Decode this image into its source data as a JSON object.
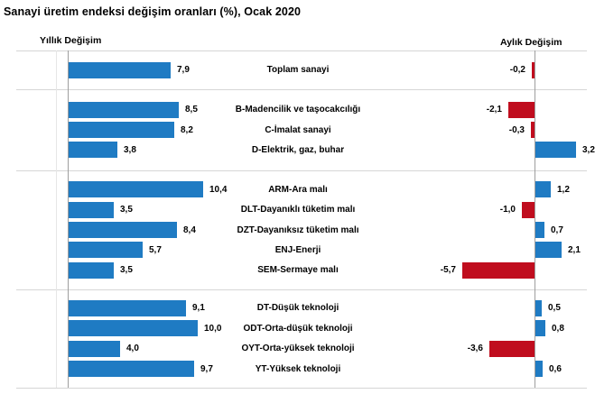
{
  "chart_data": {
    "type": "bar",
    "orientation": "horizontal",
    "title": "Sanayi üretim endeksi değişim oranları (%), Ocak 2020",
    "panels": [
      {
        "name": "Yıllık Değişim",
        "side": "left"
      },
      {
        "name": "Aylık Değişim",
        "side": "right"
      }
    ],
    "colors": {
      "positive": "#1f7bc3",
      "negative": "#c00d1e"
    },
    "value_format": "comma-decimal, 1 decimal place",
    "layout_hints": {
      "grid": "horizontal group separators only",
      "axis_ticks": "none",
      "value_labels": "at bar ends"
    },
    "groups": [
      {
        "rows": [
          {
            "label": "Toplam sanayi",
            "annual": 7.9,
            "annual_label": "7,9",
            "monthly": -0.2,
            "monthly_label": "-0,2"
          }
        ]
      },
      {
        "rows": [
          {
            "label": "B-Madencilik ve taşocakcılığı",
            "annual": 8.5,
            "annual_label": "8,5",
            "monthly": -2.1,
            "monthly_label": "-2,1"
          },
          {
            "label": "C-İmalat sanayi",
            "annual": 8.2,
            "annual_label": "8,2",
            "monthly": -0.3,
            "monthly_label": "-0,3"
          },
          {
            "label": "D-Elektrik, gaz, buhar",
            "annual": 3.8,
            "annual_label": "3,8",
            "monthly": 3.2,
            "monthly_label": "3,2"
          }
        ]
      },
      {
        "rows": [
          {
            "label": "ARM-Ara malı",
            "annual": 10.4,
            "annual_label": "10,4",
            "monthly": 1.2,
            "monthly_label": "1,2"
          },
          {
            "label": "DLT-Dayanıklı tüketim malı",
            "annual": 3.5,
            "annual_label": "3,5",
            "monthly": -1.0,
            "monthly_label": "-1,0"
          },
          {
            "label": "DZT-Dayanıksız tüketim malı",
            "annual": 8.4,
            "annual_label": "8,4",
            "monthly": 0.7,
            "monthly_label": "0,7"
          },
          {
            "label": "ENJ-Enerji",
            "annual": 5.7,
            "annual_label": "5,7",
            "monthly": 2.1,
            "monthly_label": "2,1"
          },
          {
            "label": "SEM-Sermaye malı",
            "annual": 3.5,
            "annual_label": "3,5",
            "monthly": -5.7,
            "monthly_label": "-5,7"
          }
        ]
      },
      {
        "rows": [
          {
            "label": "DT-Düşük teknoloji",
            "annual": 9.1,
            "annual_label": "9,1",
            "monthly": 0.5,
            "monthly_label": "0,5"
          },
          {
            "label": "ODT-Orta-düşük teknoloji",
            "annual": 10.0,
            "annual_label": "10,0",
            "monthly": 0.8,
            "monthly_label": "0,8"
          },
          {
            "label": "OYT-Orta-yüksek teknoloji",
            "annual": 4.0,
            "annual_label": "4,0",
            "monthly": -3.6,
            "monthly_label": "-3,6"
          },
          {
            "label": "YT-Yüksek teknoloji",
            "annual": 9.7,
            "annual_label": "9,7",
            "monthly": 0.6,
            "monthly_label": "0,6"
          }
        ]
      }
    ]
  }
}
